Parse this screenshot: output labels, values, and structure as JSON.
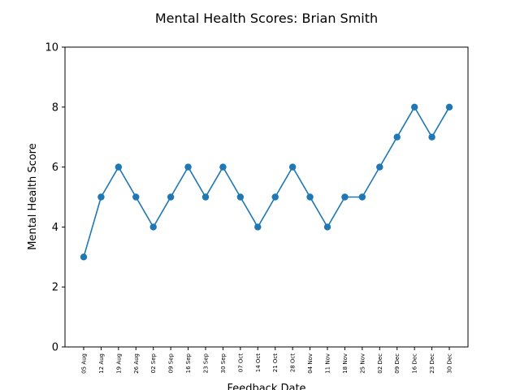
{
  "chart_data": {
    "type": "line",
    "title": "Mental Health Scores: Brian Smith",
    "xlabel": "Feedback Date",
    "ylabel": "Mental Health Score",
    "ylim": [
      0,
      10
    ],
    "yticks": [
      0,
      2,
      4,
      6,
      8,
      10
    ],
    "grid": false,
    "line_color": "#1f77b4",
    "marker_color": "#1f77b4",
    "categories": [
      "05 Aug",
      "12 Aug",
      "19 Aug",
      "26 Aug",
      "02 Sep",
      "09 Sep",
      "16 Sep",
      "23 Sep",
      "30 Sep",
      "07 Oct",
      "14 Oct",
      "21 Oct",
      "28 Oct",
      "04 Nov",
      "11 Nov",
      "18 Nov",
      "25 Nov",
      "02 Dec",
      "09 Dec",
      "16 Dec",
      "23 Dec",
      "30 Dec"
    ],
    "values": [
      3,
      5,
      6,
      5,
      4,
      5,
      6,
      5,
      6,
      5,
      4,
      5,
      6,
      5,
      4,
      5,
      5,
      6,
      7,
      8,
      7,
      8
    ]
  }
}
